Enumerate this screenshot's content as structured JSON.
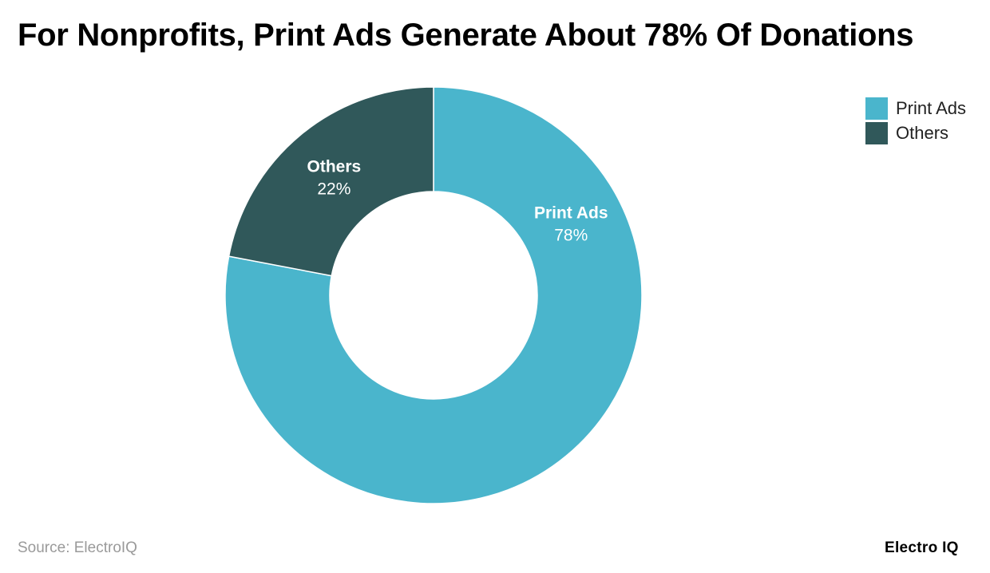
{
  "title": "For Nonprofits, Print Ads Generate About 78% Of Donations",
  "source": "Source: ElectroIQ",
  "brand": "Electro IQ",
  "chart_data": {
    "type": "pie",
    "title": "For Nonprofits, Print Ads Generate About 78% Of Donations",
    "donut": true,
    "legend_position": "top-right",
    "slices": [
      {
        "label": "Print Ads",
        "value": 78,
        "value_label": "78%",
        "color": "#4ab5cc"
      },
      {
        "label": "Others",
        "value": 22,
        "value_label": "22%",
        "color": "#30585a"
      }
    ]
  }
}
